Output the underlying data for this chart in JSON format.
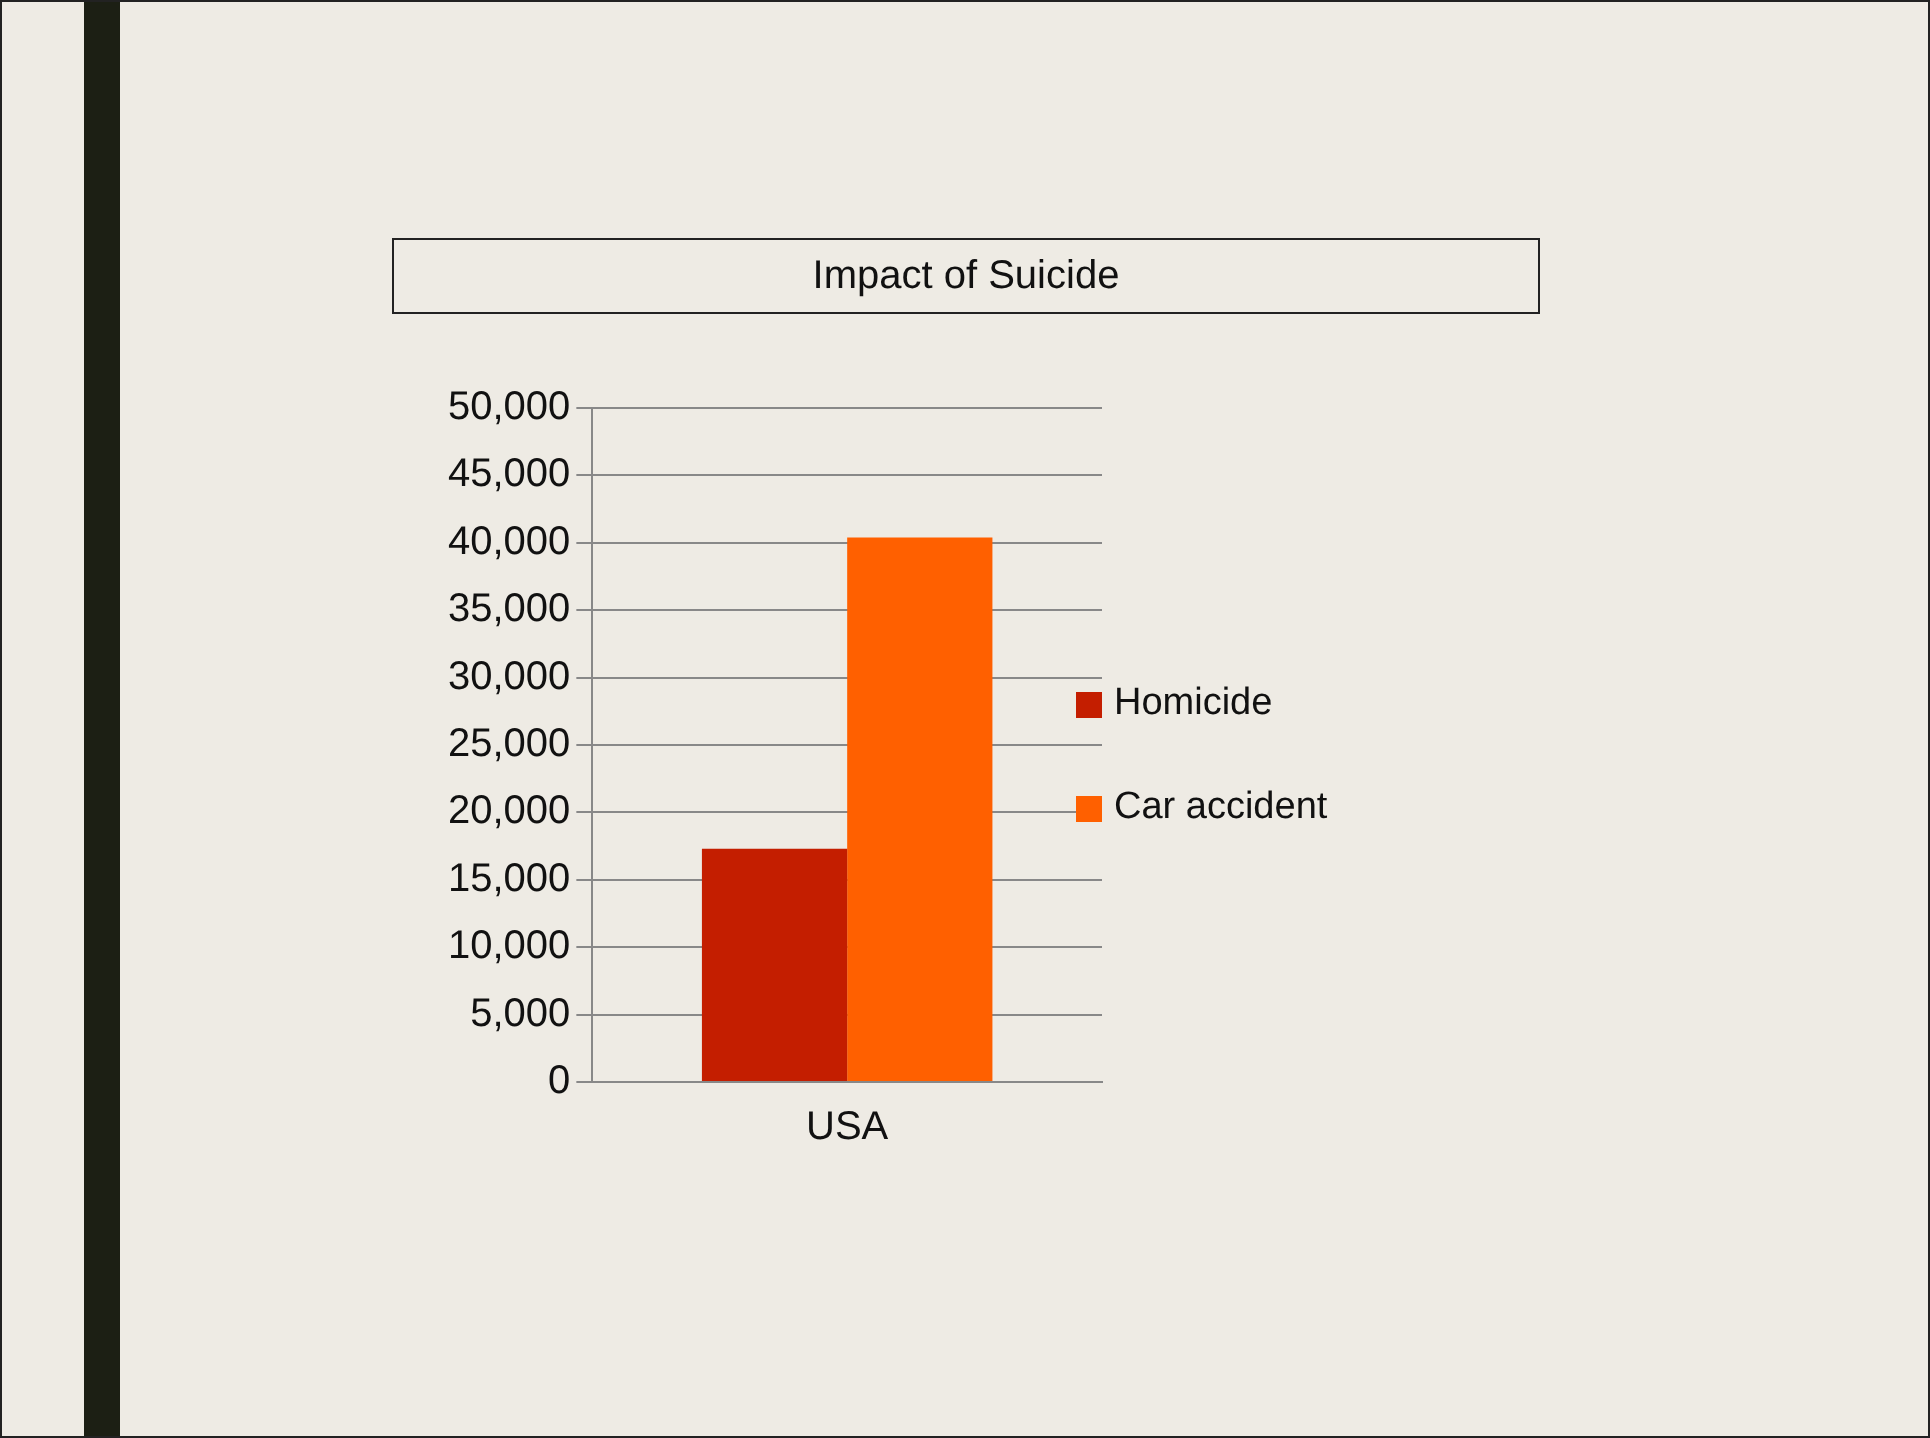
{
  "chart_data": {
    "type": "bar",
    "title": "Impact of Suicide",
    "categories": [
      "USA"
    ],
    "series": [
      {
        "name": "Homicide",
        "color": "#c41e00",
        "values": [
          17300
        ]
      },
      {
        "name": "Car accident",
        "color": "#ff6000",
        "values": [
          40400
        ]
      }
    ],
    "ylim": [
      0,
      50000
    ],
    "yticks": [
      {
        "value": 0,
        "label": "0"
      },
      {
        "value": 5000,
        "label": "5,000"
      },
      {
        "value": 10000,
        "label": "10,000"
      },
      {
        "value": 15000,
        "label": "15,000"
      },
      {
        "value": 20000,
        "label": "20,000"
      },
      {
        "value": 25000,
        "label": "25,000"
      },
      {
        "value": 30000,
        "label": "30,000"
      },
      {
        "value": 35000,
        "label": "35,000"
      },
      {
        "value": 40000,
        "label": "40,000"
      },
      {
        "value": 45000,
        "label": "45,000"
      },
      {
        "value": 50000,
        "label": "50,000"
      }
    ],
    "grid": "y",
    "legend": "right"
  }
}
